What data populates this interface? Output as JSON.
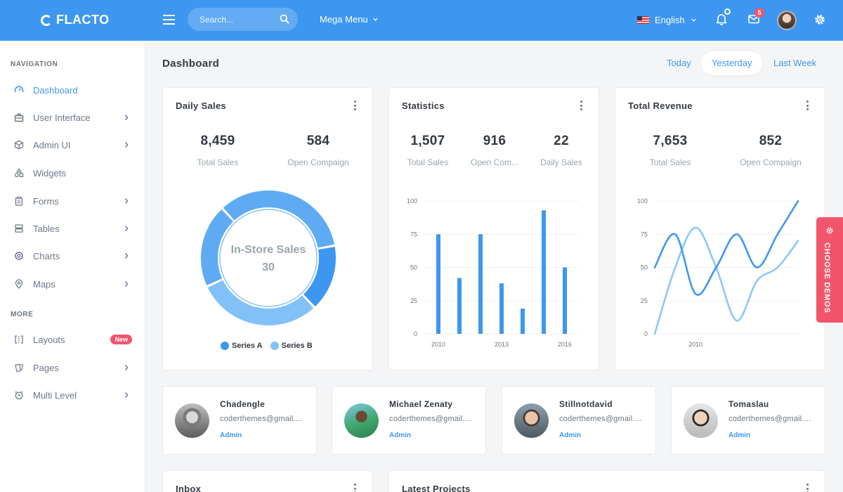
{
  "brand": {
    "name": "FLACTO"
  },
  "topbar": {
    "search_placeholder": "Search...",
    "mega_menu": "Mega Menu",
    "language": "English",
    "mail_count": "5"
  },
  "sidebar": {
    "nav_title": "NAVIGATION",
    "more_title": "MORE",
    "items": [
      {
        "label": "Dashboard",
        "icon": "gauge-icon",
        "active": true
      },
      {
        "label": "User Interface",
        "icon": "briefcase-icon"
      },
      {
        "label": "Admin UI",
        "icon": "cube-icon"
      },
      {
        "label": "Widgets",
        "icon": "shapes-icon"
      },
      {
        "label": "Forms",
        "icon": "clipboard-icon"
      },
      {
        "label": "Tables",
        "icon": "server-icon"
      },
      {
        "label": "Charts",
        "icon": "aperture-icon"
      },
      {
        "label": "Maps",
        "icon": "map-pin-icon"
      }
    ],
    "more_items": [
      {
        "label": "Layouts",
        "icon": "columns-icon",
        "badge": "New"
      },
      {
        "label": "Pages",
        "icon": "files-icon"
      },
      {
        "label": "Multi Level",
        "icon": "alarm-icon"
      }
    ]
  },
  "page": {
    "title": "Dashboard",
    "ranges": [
      "Today",
      "Yesterday",
      "Last Week"
    ],
    "active_range": "Yesterday"
  },
  "cards": {
    "daily_sales": {
      "title": "Daily Sales",
      "stats": [
        {
          "value": "8,459",
          "label": "Total Sales"
        },
        {
          "value": "584",
          "label": "Open Compaign"
        }
      ]
    },
    "statistics": {
      "title": "Statistics",
      "stats": [
        {
          "value": "1,507",
          "label": "Total Sales"
        },
        {
          "value": "916",
          "label": "Open Com..."
        },
        {
          "value": "22",
          "label": "Daily Sales"
        }
      ]
    },
    "revenue": {
      "title": "Total Revenue",
      "stats": [
        {
          "value": "7,653",
          "label": "Total Sales"
        },
        {
          "value": "852",
          "label": "Open Compaign"
        }
      ]
    },
    "inbox": {
      "title": "Inbox"
    },
    "projects": {
      "title": "Latest Projects"
    }
  },
  "chart_data": [
    {
      "type": "donut",
      "center_label": "In-Store Sales",
      "center_value": "30",
      "series": [
        {
          "name": "Series A",
          "color": "#3d97f0"
        },
        {
          "name": "Series B",
          "color": "#82c1f8"
        }
      ],
      "slices": [
        {
          "series": "Series A",
          "value": 34,
          "color": "#5eabf4"
        },
        {
          "series": "Series A",
          "value": 16,
          "color": "#3d97f0"
        },
        {
          "series": "Series B",
          "value": 30,
          "color": "#82c1f8"
        },
        {
          "series": "Series B",
          "value": 20,
          "color": "#5eabf4"
        }
      ]
    },
    {
      "type": "bar",
      "color": "#3d97f0",
      "ylim": [
        0,
        100
      ],
      "yticks": [
        0,
        25,
        50,
        75,
        100
      ],
      "xticks": [
        "2010",
        "2013",
        "2016"
      ],
      "values": [
        75,
        42,
        75,
        38,
        19,
        93,
        50
      ]
    },
    {
      "type": "line",
      "ylim": [
        0,
        100
      ],
      "yticks": [
        0,
        25,
        50,
        75,
        100
      ],
      "xticks": [
        "2010"
      ],
      "series": [
        {
          "color": "#3d97f0",
          "values": [
            50,
            75,
            30,
            50,
            75,
            50,
            75,
            100
          ]
        },
        {
          "color": "#8cc8f8",
          "values": [
            0,
            50,
            80,
            50,
            10,
            40,
            50,
            70
          ]
        }
      ]
    }
  ],
  "users": [
    {
      "name": "Chadengle",
      "email": "coderthemes@gmail....",
      "role": "Admin"
    },
    {
      "name": "Michael Zenaty",
      "email": "coderthemes@gmail....",
      "role": "Admin"
    },
    {
      "name": "Stillnotdavid",
      "email": "coderthemes@gmail....",
      "role": "Admin"
    },
    {
      "name": "Tomaslau",
      "email": "coderthemes@gmail....",
      "role": "Admin"
    }
  ],
  "choose_demos": "CHOOSE DEMOS"
}
